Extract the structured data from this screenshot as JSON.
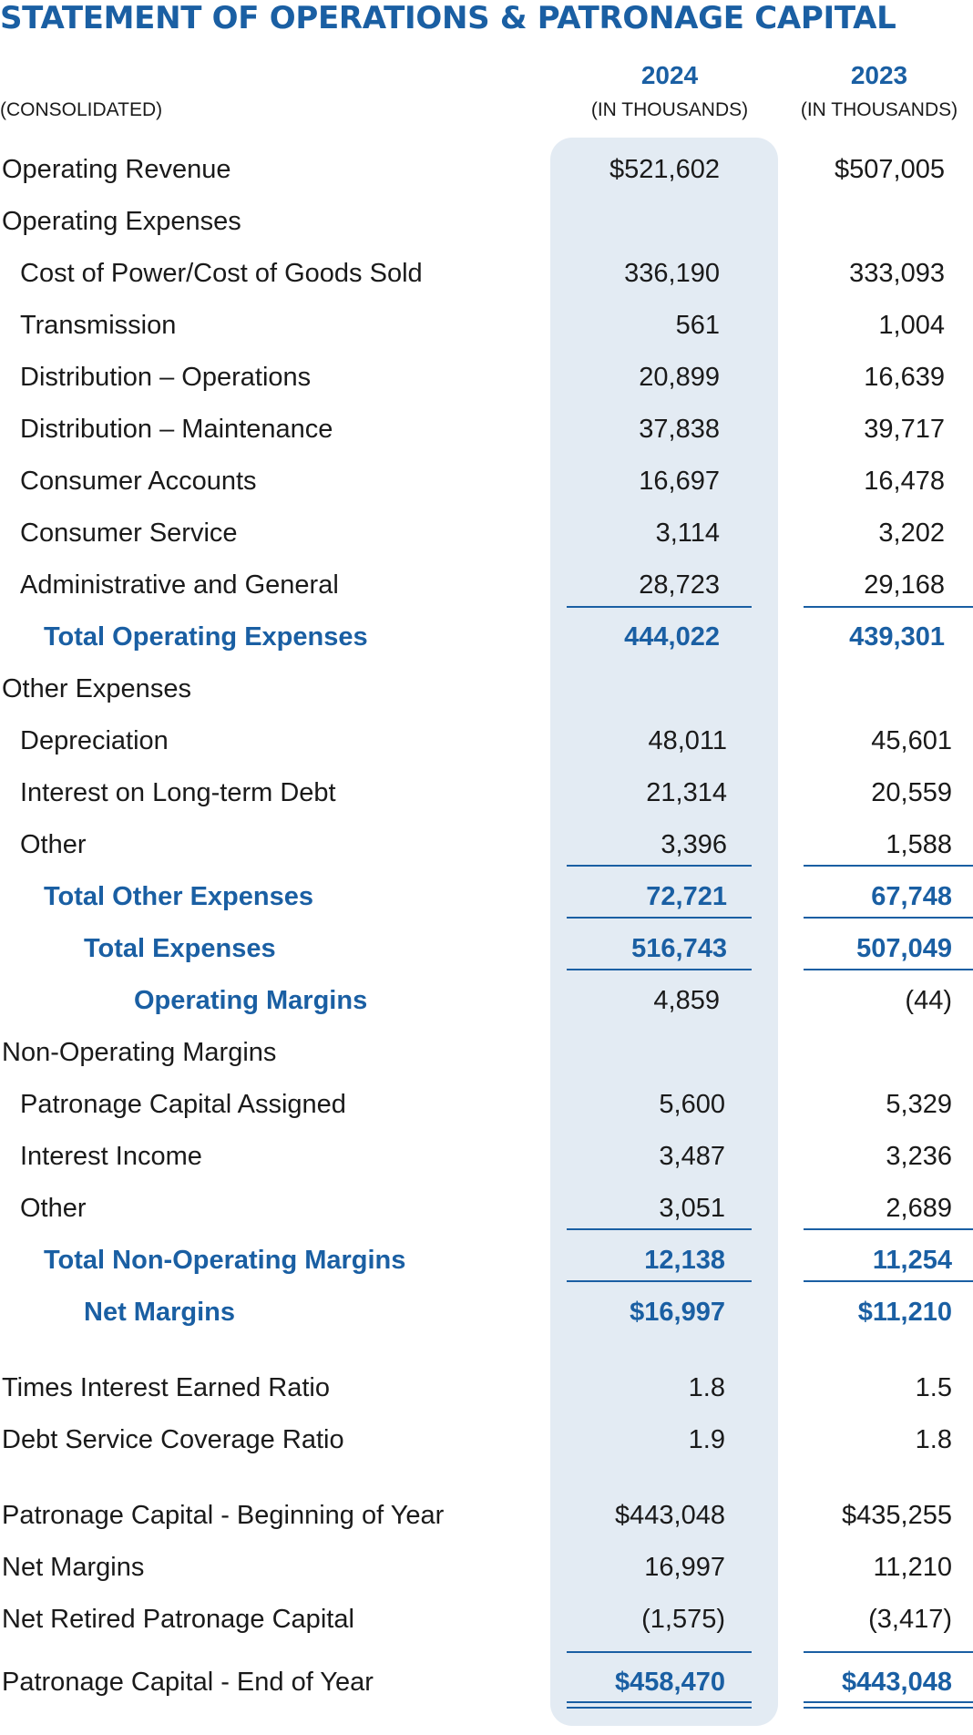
{
  "title": "STATEMENT OF OPERATIONS & PATRONAGE CAPITAL",
  "header": {
    "consolidated": "(CONSOLIDATED)",
    "col1_year": "2024",
    "col2_year": "2023",
    "unit": "(IN THOUSANDS)"
  },
  "colors": {
    "accent": "#1a5fa3",
    "highlight": "#e3ebf3",
    "text": "#1a1a1a"
  },
  "rows": [
    {
      "label": "Operating Revenue",
      "v2024": "$521,602",
      "v2023": "$507,005"
    },
    {
      "label": "Operating Expenses",
      "v2024": "",
      "v2023": ""
    },
    {
      "label": "Cost of Power/Cost of Goods Sold",
      "v2024": "336,190",
      "v2023": "333,093"
    },
    {
      "label": "Transmission",
      "v2024": "561",
      "v2023": "1,004"
    },
    {
      "label": "Distribution – Operations",
      "v2024": "20,899",
      "v2023": "16,639"
    },
    {
      "label": "Distribution – Maintenance",
      "v2024": "37,838",
      "v2023": "39,717"
    },
    {
      "label": "Consumer Accounts",
      "v2024": "16,697",
      "v2023": "16,478"
    },
    {
      "label": "Consumer Service",
      "v2024": "3,114",
      "v2023": "3,202"
    },
    {
      "label": "Administrative and General",
      "v2024": "28,723",
      "v2023": "29,168"
    },
    {
      "label": "Total Operating Expenses",
      "v2024": "444,022",
      "v2023": "439,301"
    },
    {
      "label": "Other Expenses",
      "v2024": "",
      "v2023": ""
    },
    {
      "label": "Depreciation",
      "v2024": "48,011",
      "v2023": "45,601"
    },
    {
      "label": "Interest on Long-term Debt",
      "v2024": "21,314",
      "v2023": "20,559"
    },
    {
      "label": "Other",
      "v2024": "3,396",
      "v2023": "1,588"
    },
    {
      "label": "Total Other Expenses",
      "v2024": "72,721",
      "v2023": "67,748"
    },
    {
      "label": "Total Expenses",
      "v2024": "516,743",
      "v2023": "507,049"
    },
    {
      "label": "Operating Margins",
      "v2024": "4,859",
      "v2023": "(44)"
    },
    {
      "label": "Non-Operating Margins",
      "v2024": "",
      "v2023": ""
    },
    {
      "label": "Patronage Capital Assigned",
      "v2024": "5,600",
      "v2023": "5,329"
    },
    {
      "label": "Interest Income",
      "v2024": "3,487",
      "v2023": "3,236"
    },
    {
      "label": "Other",
      "v2024": "3,051",
      "v2023": "2,689"
    },
    {
      "label": "Total Non-Operating Margins",
      "v2024": "12,138",
      "v2023": "11,254"
    },
    {
      "label": "Net Margins",
      "v2024": "$16,997",
      "v2023": "$11,210"
    },
    {
      "label": "Times Interest Earned Ratio",
      "v2024": "1.8",
      "v2023": "1.5"
    },
    {
      "label": "Debt Service Coverage Ratio",
      "v2024": "1.9",
      "v2023": "1.8"
    },
    {
      "label": "Patronage Capital - Beginning of Year",
      "v2024": "$443,048",
      "v2023": "$435,255"
    },
    {
      "label": "Net Margins",
      "v2024": "16,997",
      "v2023": "11,210"
    },
    {
      "label": "Net Retired Patronage Capital",
      "v2024": "(1,575)",
      "v2023": "(3,417)"
    },
    {
      "label": "Patronage Capital  - End of Year",
      "v2024": "$458,470",
      "v2023": "$443,048"
    }
  ]
}
